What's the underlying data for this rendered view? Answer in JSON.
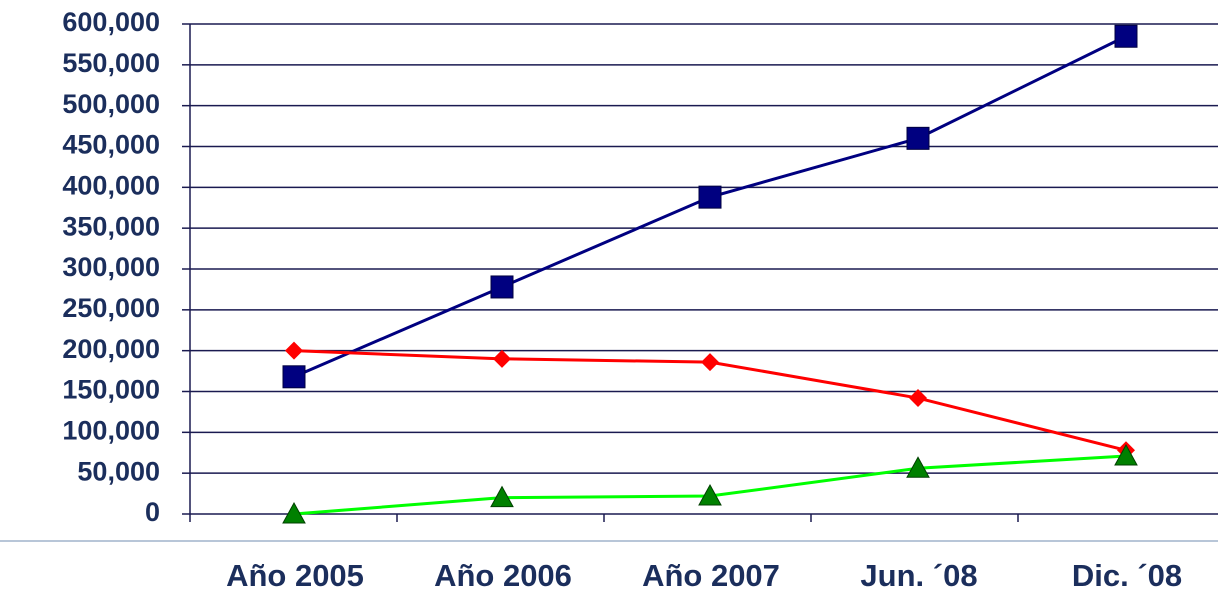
{
  "chart_data": {
    "type": "line",
    "categories": [
      "Año 2005",
      "Año 2006",
      "Año 2007",
      "Jun. ´08",
      "Dic. ´08"
    ],
    "series": [
      {
        "color": "#000080",
        "marker": "square",
        "values": [
          168000,
          278000,
          388000,
          460000,
          585000
        ]
      },
      {
        "color": "#ff0000",
        "marker": "diamond",
        "values": [
          200000,
          190000,
          186000,
          142000,
          78000
        ]
      },
      {
        "color": "#00ff00",
        "marker_color": "#008000",
        "marker": "triangle",
        "values": [
          0,
          20000,
          22000,
          56000,
          71000
        ]
      }
    ],
    "ylim": [
      0,
      600000
    ],
    "yticks": [
      0,
      {
        "value": 50000,
        "label": "50,000"
      },
      {
        "value": 100000,
        "label": "100,000"
      },
      {
        "value": 150000,
        "label": "150,000"
      },
      {
        "value": 200000,
        "label": "200,000"
      },
      {
        "value": 250000,
        "label": "250,000"
      },
      {
        "value": 300000,
        "label": "300,000"
      },
      {
        "value": 350000,
        "label": "350,000"
      },
      {
        "value": 400000,
        "label": "400,000"
      },
      {
        "value": 450000,
        "label": "450,000"
      },
      {
        "value": 500000,
        "label": "500,000"
      },
      {
        "value": 550000,
        "label": "550,000"
      },
      {
        "value": 600000,
        "label": "600,000"
      }
    ],
    "grid": true
  }
}
